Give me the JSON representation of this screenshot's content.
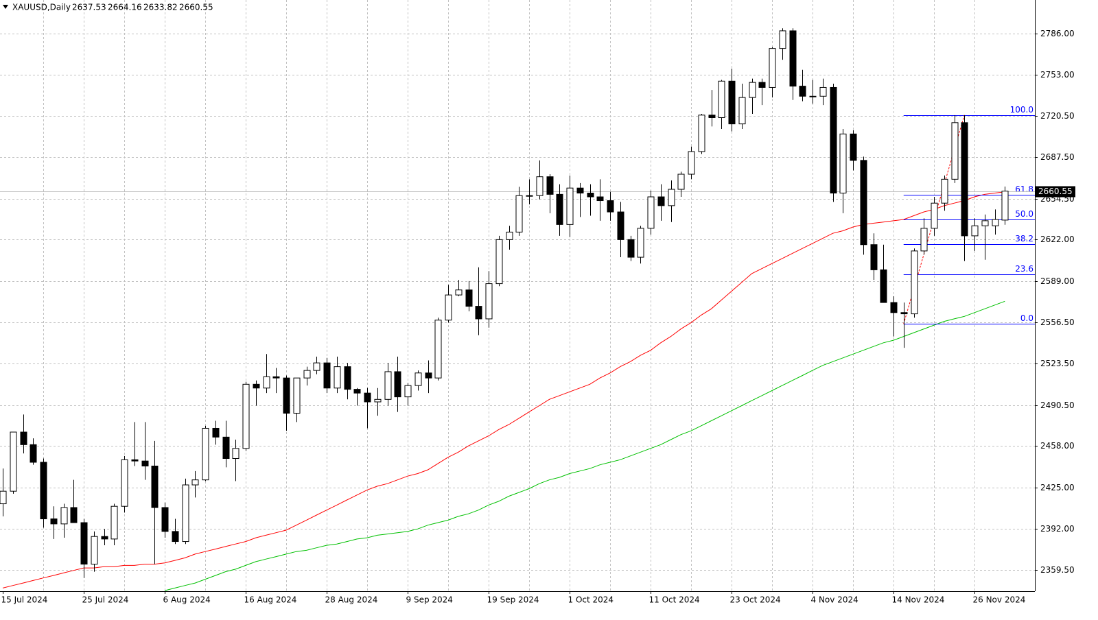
{
  "chart_data": {
    "type": "candlestick",
    "title": "XAUUSD,Daily",
    "categories": [
      "15 Jul 2024",
      null,
      null,
      null,
      null,
      null,
      null,
      null,
      "25 Jul 2024",
      null,
      null,
      null,
      null,
      null,
      null,
      null,
      "6 Aug 2024",
      null,
      null,
      null,
      null,
      null,
      null,
      null,
      "16 Aug 2024",
      null,
      null,
      null,
      null,
      null,
      null,
      null,
      "28 Aug 2024",
      null,
      null,
      null,
      null,
      null,
      null,
      null,
      "9 Sep 2024",
      null,
      null,
      null,
      null,
      null,
      null,
      null,
      "19 Sep 2024",
      null,
      null,
      null,
      null,
      null,
      null,
      null,
      "1 Oct 2024",
      null,
      null,
      null,
      null,
      null,
      null,
      null,
      "11 Oct 2024",
      null,
      null,
      null,
      null,
      null,
      null,
      null,
      "23 Oct 2024",
      null,
      null,
      null,
      null,
      null,
      null,
      null,
      "4 Nov 2024",
      null,
      null,
      null,
      null,
      null,
      null,
      null,
      "14 Nov 2024",
      null,
      null,
      null,
      null,
      null,
      null,
      null,
      "26 Nov 2024",
      null,
      null,
      null
    ],
    "open": [
      2412,
      2422,
      2469,
      2459,
      2445,
      2400,
      2396,
      2409,
      2397,
      2364,
      2386,
      2384,
      2410,
      2447,
      2446,
      2442,
      2409,
      2390,
      2382,
      2427,
      2431,
      2472,
      2465,
      2448,
      2456,
      2507,
      2504,
      2513,
      2512,
      2484,
      2512,
      2518,
      2524,
      2504,
      2521,
      2503,
      2500,
      2493,
      2495,
      2517,
      2497,
      2506,
      2516,
      2512,
      2558,
      2578,
      2582,
      2569,
      2559,
      2587,
      2622,
      2628,
      2657,
      2657,
      2672,
      2658,
      2634,
      2663,
      2659,
      2656,
      2653,
      2644,
      2622,
      2608,
      2631,
      2656,
      2649,
      2662,
      2674,
      2692,
      2721,
      2719,
      2748,
      2714,
      2735,
      2747,
      2743,
      2774,
      2788,
      2744,
      2736,
      2736,
      2743,
      2659,
      2706,
      2685,
      2618,
      2598,
      2572,
      2564,
      2563,
      2613,
      2631,
      2651,
      2670,
      2715,
      2625,
      2633,
      2633,
      2637.53
    ],
    "high": [
      2440,
      2469,
      2483,
      2464,
      2448,
      2410,
      2412,
      2431,
      2400,
      2390,
      2392,
      2412,
      2450,
      2477,
      2477,
      2462,
      2413,
      2400,
      2432,
      2438,
      2474,
      2478,
      2478,
      2463,
      2509,
      2510,
      2531,
      2520,
      2514,
      2512,
      2521,
      2529,
      2528,
      2529,
      2524,
      2504,
      2504,
      2504,
      2524,
      2529,
      2508,
      2518,
      2526,
      2560,
      2586,
      2590,
      2589,
      2600,
      2597,
      2625,
      2633,
      2664,
      2670,
      2685,
      2674,
      2666,
      2673,
      2667,
      2666,
      2670,
      2660,
      2652,
      2625,
      2633,
      2661,
      2666,
      2669,
      2676,
      2696,
      2722,
      2741,
      2749,
      2758,
      2746,
      2750,
      2750,
      2775,
      2790,
      2790,
      2757,
      2749,
      2750,
      2746,
      2710,
      2709,
      2688,
      2627,
      2618,
      2577,
      2572,
      2615,
      2639,
      2656,
      2673,
      2721,
      2721,
      2639,
      2642,
      2646,
      2664.16
    ],
    "low": [
      2402,
      2420,
      2452,
      2443,
      2393,
      2384,
      2385,
      2397,
      2353,
      2358,
      2379,
      2379,
      2405,
      2442,
      2431,
      2364,
      2385,
      2380,
      2380,
      2417,
      2430,
      2459,
      2441,
      2430,
      2454,
      2490,
      2500,
      2500,
      2470,
      2477,
      2506,
      2515,
      2500,
      2500,
      2495,
      2490,
      2472,
      2482,
      2490,
      2485,
      2490,
      2502,
      2500,
      2510,
      2556,
      2577,
      2565,
      2546,
      2552,
      2585,
      2614,
      2625,
      2650,
      2654,
      2643,
      2625,
      2624,
      2640,
      2641,
      2637,
      2637,
      2608,
      2605,
      2603,
      2626,
      2637,
      2636,
      2656,
      2670,
      2690,
      2712,
      2710,
      2708,
      2710,
      2722,
      2729,
      2735,
      2765,
      2733,
      2732,
      2730,
      2729,
      2652,
      2643,
      2677,
      2610,
      2590,
      2572,
      2545,
      2536,
      2560,
      2610,
      2625,
      2645,
      2667,
      2605,
      2613,
      2606,
      2626,
      2633.82
    ],
    "close": [
      2422,
      2469,
      2459,
      2445,
      2400,
      2396,
      2409,
      2397,
      2364,
      2386,
      2384,
      2410,
      2447,
      2446,
      2442,
      2409,
      2390,
      2382,
      2427,
      2431,
      2472,
      2465,
      2448,
      2456,
      2507,
      2504,
      2513,
      2512,
      2484,
      2512,
      2518,
      2524,
      2504,
      2521,
      2503,
      2500,
      2493,
      2495,
      2517,
      2497,
      2506,
      2516,
      2512,
      2558,
      2578,
      2582,
      2569,
      2559,
      2587,
      2622,
      2628,
      2657,
      2657,
      2672,
      2658,
      2634,
      2663,
      2659,
      2656,
      2653,
      2644,
      2622,
      2608,
      2631,
      2656,
      2649,
      2662,
      2674,
      2692,
      2721,
      2719,
      2748,
      2714,
      2735,
      2747,
      2743,
      2774,
      2788,
      2744,
      2736,
      2736,
      2743,
      2659,
      2706,
      2685,
      2618,
      2598,
      2572,
      2564,
      2563,
      2613,
      2631,
      2651,
      2670,
      2715,
      2625,
      2633,
      2637,
      2638,
      2660.55
    ],
    "moving_averages": [
      {
        "color": "#ff0000",
        "values": [
          2345,
          2347,
          2349,
          2351,
          2353,
          2355,
          2357,
          2359,
          2361,
          2361,
          2362,
          2362,
          2363,
          2363,
          2364,
          2364,
          2365,
          2367,
          2369,
          2372,
          2374,
          2376,
          2378,
          2380,
          2382,
          2385,
          2387,
          2389,
          2391,
          2395,
          2399,
          2403,
          2407,
          2411,
          2415,
          2419,
          2423,
          2426,
          2428,
          2431,
          2434,
          2436,
          2439,
          2444,
          2449,
          2453,
          2458,
          2462,
          2466,
          2471,
          2475,
          2480,
          2485,
          2490,
          2495,
          2498,
          2501,
          2504,
          2507,
          2512,
          2516,
          2521,
          2525,
          2530,
          2534,
          2540,
          2545,
          2551,
          2556,
          2562,
          2567,
          2574,
          2581,
          2588,
          2595,
          2599,
          2603,
          2607,
          2611,
          2615,
          2619,
          2623,
          2627,
          2629,
          2632,
          2634,
          2635,
          2636,
          2637,
          2638,
          2641,
          2644,
          2646,
          2649,
          2651,
          2653,
          2656,
          2658,
          2659,
          2660
        ]
      },
      {
        "color": "#00c000",
        "values": [
          null,
          null,
          null,
          null,
          null,
          null,
          null,
          null,
          null,
          null,
          null,
          null,
          null,
          null,
          null,
          null,
          2343,
          2345,
          2347,
          2349,
          2352,
          2355,
          2358,
          2360,
          2363,
          2366,
          2368,
          2370,
          2372,
          2374,
          2375,
          2377,
          2379,
          2380,
          2382,
          2384,
          2385,
          2387,
          2388,
          2389,
          2390,
          2392,
          2395,
          2397,
          2399,
          2402,
          2404,
          2407,
          2411,
          2414,
          2418,
          2421,
          2424,
          2428,
          2431,
          2433,
          2436,
          2438,
          2440,
          2443,
          2445,
          2447,
          2450,
          2453,
          2456,
          2459,
          2463,
          2467,
          2470,
          2474,
          2478,
          2482,
          2486,
          2490,
          2494,
          2498,
          2502,
          2506,
          2510,
          2514,
          2518,
          2522,
          2525,
          2528,
          2531,
          2534,
          2537,
          2540,
          2542,
          2545,
          2548,
          2551,
          2554,
          2557,
          2559,
          2561,
          2564,
          2567,
          2570,
          2573
        ]
      }
    ],
    "fibonacci": {
      "color": "#0000ff",
      "trend_color": "#ff0000",
      "x": [
        89,
        95
      ],
      "y": [
        2555,
        2721
      ],
      "levels": [
        {
          "value": 0,
          "label": "0.0"
        },
        23.6,
        38.2,
        {
          "value": 50,
          "label": "50.0"
        },
        61.8,
        {
          "value": 100,
          "label": "100.0"
        }
      ]
    },
    "ylim": [
      2342.5,
      2812.5
    ],
    "yticks": [
      {
        "value": 2359.5,
        "label": "2359.50"
      },
      {
        "value": 2392,
        "label": "2392.00"
      },
      {
        "value": 2425,
        "label": "2425.00"
      },
      {
        "value": 2458,
        "label": "2458.00"
      },
      {
        "value": 2490.5,
        "label": "2490.50"
      },
      {
        "value": 2523.5,
        "label": "2523.50"
      },
      {
        "value": 2556.5,
        "label": "2556.50"
      },
      {
        "value": 2589,
        "label": "2589.00"
      },
      {
        "value": 2622,
        "label": "2622.00"
      },
      {
        "value": 2654.5,
        "label": "2654.50"
      },
      {
        "value": 2687.5,
        "label": "2687.50"
      },
      {
        "value": 2720.5,
        "label": "2720.50"
      },
      {
        "value": 2753,
        "label": "2753.00"
      },
      {
        "value": 2786,
        "label": "2786.00"
      }
    ],
    "grid": true
  }
}
